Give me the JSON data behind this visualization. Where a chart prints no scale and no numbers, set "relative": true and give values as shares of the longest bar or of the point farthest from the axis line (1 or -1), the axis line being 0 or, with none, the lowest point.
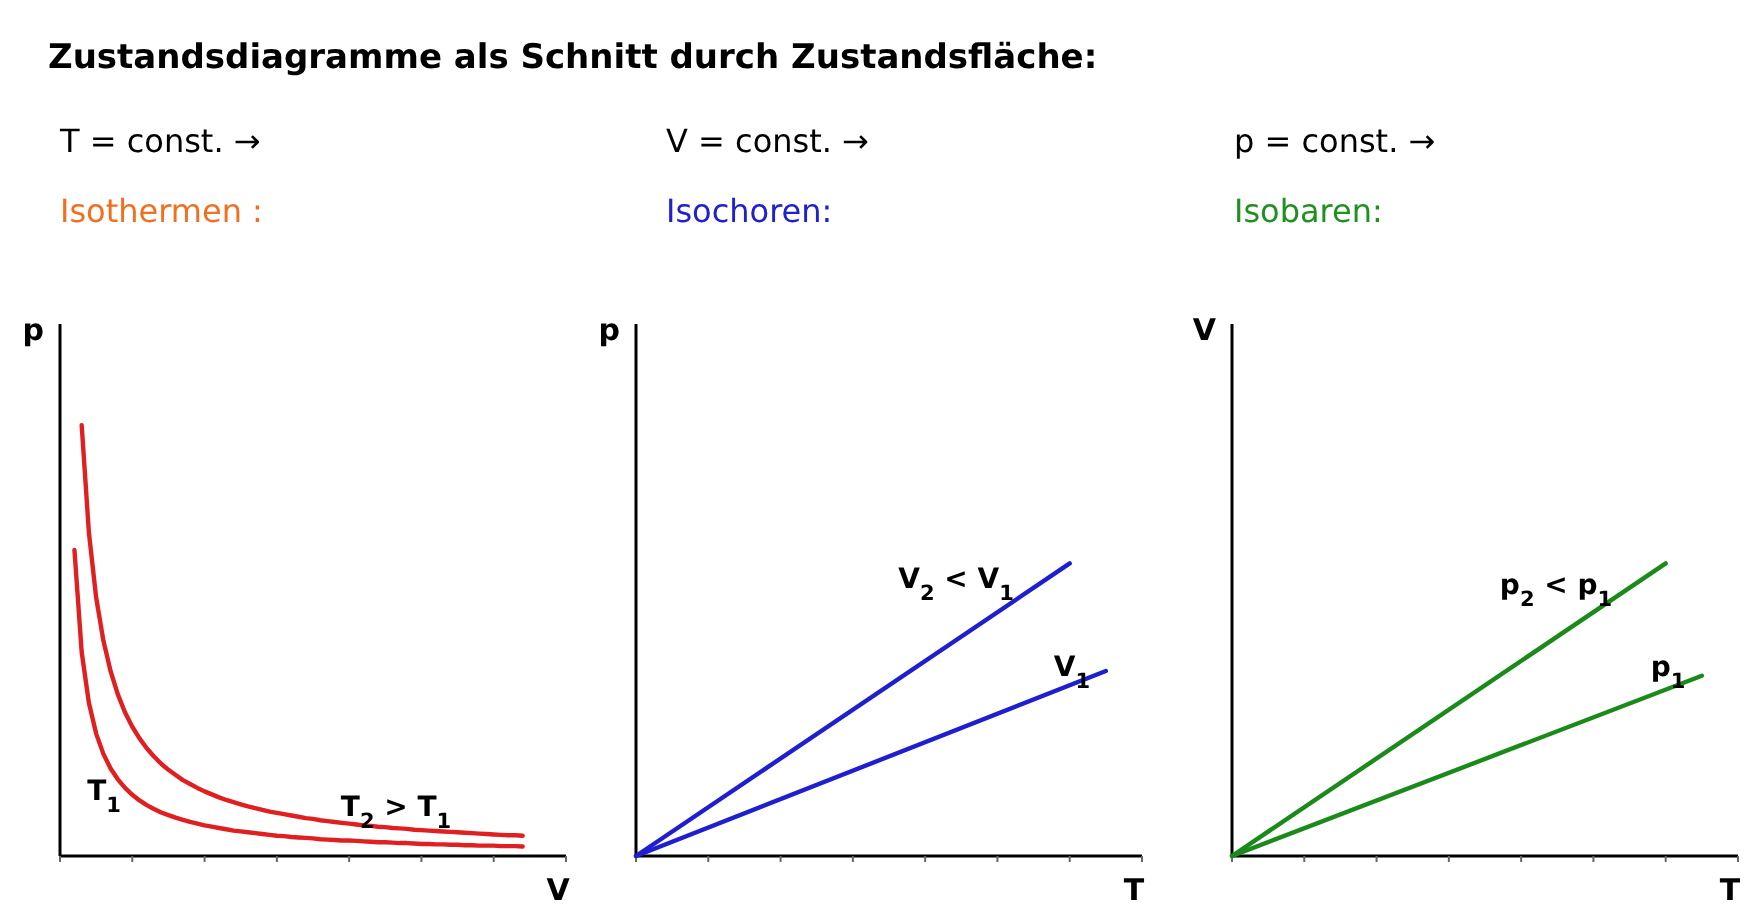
{
  "chart_data": [
    {
      "type": "line",
      "title": "T = const.  →",
      "subtitle": "Isothermen :",
      "xlabel": "V",
      "ylabel": "p",
      "relative": true,
      "line_style": "solid",
      "categories": [
        null,
        null,
        null,
        null,
        null,
        null,
        null,
        null,
        null,
        null,
        null,
        null,
        null,
        null,
        null,
        null,
        null,
        null,
        null,
        null,
        null,
        null,
        null,
        null,
        null,
        null,
        null,
        null,
        null,
        null,
        null,
        null,
        null,
        null,
        null,
        null,
        null,
        null,
        null,
        null,
        null,
        null,
        null,
        null,
        null,
        null,
        null,
        null,
        null,
        null,
        null,
        null,
        null,
        null,
        null,
        null,
        null,
        null,
        null,
        null,
        null,
        null,
        null,
        null,
        null,
        null,
        null,
        null,
        null,
        null,
        null
      ],
      "annotations": [
        "Zustandsdiagramme als Schnitt durch Zustandsfläche:",
        "T$_{1}$",
        "T$_{2}$ > T$_{1}$"
      ],
      "series": [
        {
          "color": "#e02020",
          "values": [
            null,
            null,
            0.71,
            0.473,
            0.355,
            0.284,
            0.237,
            0.203,
            0.178,
            0.158,
            0.142,
            0.129,
            0.118,
            0.109,
            0.101,
            0.095,
            0.089,
            0.084,
            0.079,
            0.075,
            0.071,
            0.068,
            0.065,
            0.062,
            0.059,
            0.057,
            0.055,
            0.053,
            0.051,
            0.049,
            0.047,
            0.046,
            0.044,
            0.043,
            0.042,
            0.041,
            0.039,
            0.038,
            0.037,
            0.036,
            0.036,
            0.035,
            0.034,
            0.033,
            0.032,
            0.032,
            0.031,
            0.03,
            0.03,
            0.029,
            0.028,
            0.028,
            0.027,
            0.027,
            0.026,
            0.026,
            0.025,
            0.025,
            0.024,
            0.024,
            0.024,
            0.023,
            0.023,
            0.023,
            0.022,
            null,
            null,
            null,
            null,
            null,
            null
          ]
        },
        {
          "color": "#e02020",
          "values": [
            null,
            null,
            null,
            1,
            0.75,
            0.6,
            0.5,
            0.429,
            0.375,
            0.333,
            0.3,
            0.273,
            0.25,
            0.231,
            0.214,
            0.2,
            0.188,
            0.176,
            0.167,
            0.158,
            0.15,
            0.143,
            0.136,
            0.13,
            0.125,
            0.12,
            0.115,
            0.111,
            0.107,
            0.103,
            0.1,
            0.097,
            0.094,
            0.091,
            0.088,
            0.086,
            0.083,
            0.081,
            0.079,
            0.077,
            0.075,
            0.073,
            0.071,
            0.07,
            0.068,
            0.067,
            0.065,
            0.064,
            0.063,
            0.061,
            0.06,
            0.059,
            0.058,
            0.057,
            0.056,
            0.055,
            0.054,
            0.053,
            0.052,
            0.051,
            0.05,
            0.049,
            0.048,
            0.048,
            0.047,
            null,
            null,
            null,
            null,
            null,
            null
          ]
        }
      ]
    },
    {
      "type": "line",
      "title": "V = const.  →",
      "subtitle": "Isochoren:",
      "xlabel": "T",
      "ylabel": "p",
      "relative": true,
      "line_style": "solid",
      "categories": [
        null,
        null,
        null,
        null,
        null,
        null,
        null,
        null,
        null,
        null,
        null,
        null,
        null,
        null,
        null
      ],
      "annotations": [
        "V$_{2}$ < V$_{1}$",
        "V$_{1}$"
      ],
      "series": [
        {
          "color": "#1f1fcf",
          "values": [
            0,
            null,
            null,
            null,
            null,
            null,
            null,
            null,
            null,
            null,
            null,
            null,
            1,
            null,
            null
          ]
        },
        {
          "color": "#1f1fcf",
          "values": [
            0,
            null,
            null,
            null,
            null,
            null,
            null,
            null,
            null,
            null,
            null,
            null,
            null,
            0.632,
            null
          ]
        }
      ]
    },
    {
      "type": "line",
      "title": "p = const.  →",
      "subtitle": "Isobaren:",
      "xlabel": "T",
      "ylabel": "V",
      "relative": true,
      "line_style": "solid",
      "categories": [
        null,
        null,
        null,
        null,
        null,
        null,
        null,
        null,
        null,
        null,
        null,
        null,
        null,
        null,
        null
      ],
      "annotations": [
        "p$_{2}$ < p$_{1}$",
        "p$_{1}$"
      ],
      "series": [
        {
          "color": "#1a8a1a",
          "values": [
            0,
            null,
            null,
            null,
            null,
            null,
            null,
            null,
            null,
            null,
            null,
            null,
            1,
            null,
            null
          ]
        },
        {
          "color": "#1a8a1a",
          "values": [
            0,
            null,
            null,
            null,
            null,
            null,
            null,
            null,
            null,
            null,
            null,
            null,
            null,
            0.616,
            null
          ]
        }
      ]
    }
  ]
}
